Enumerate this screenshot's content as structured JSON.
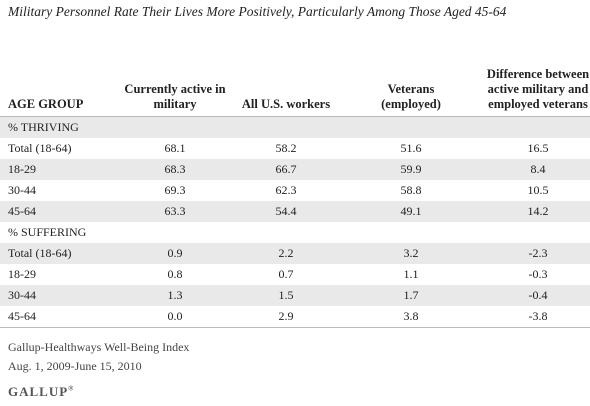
{
  "title": "Military Personnel Rate Their Lives More Positively, Particularly Among Those Aged 45-64",
  "table": {
    "header": [
      "AGE GROUP",
      "Currently active in military",
      "All U.S. workers",
      "Veterans (employed)",
      "Difference between active military and employed veterans"
    ],
    "sections": [
      {
        "label": "% THRIVING",
        "rows": [
          [
            "Total (18-64)",
            "68.1",
            "58.2",
            "51.6",
            "16.5"
          ],
          [
            "18-29",
            "68.3",
            "66.7",
            "59.9",
            "8.4"
          ],
          [
            "30-44",
            "69.3",
            "62.3",
            "58.8",
            "10.5"
          ],
          [
            "45-64",
            "63.3",
            "54.4",
            "49.1",
            "14.2"
          ]
        ]
      },
      {
        "label": "% SUFFERING",
        "rows": [
          [
            "Total (18-64)",
            "0.9",
            "2.2",
            "3.2",
            "-2.3"
          ],
          [
            "18-29",
            "0.8",
            "0.7",
            "1.1",
            "-0.3"
          ],
          [
            "30-44",
            "1.3",
            "1.5",
            "1.7",
            "-0.4"
          ],
          [
            "45-64",
            "0.0",
            "2.9",
            "3.8",
            "-3.8"
          ]
        ]
      }
    ]
  },
  "footer": {
    "source": "Gallup-Healthways Well-Being Index",
    "dates": "Aug. 1, 2009-June 15, 2010",
    "logo": "GALLUP"
  }
}
